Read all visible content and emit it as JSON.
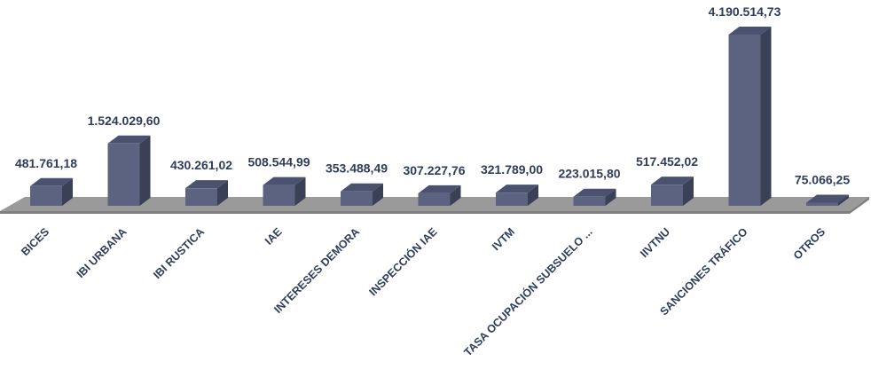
{
  "chart_data": {
    "type": "bar",
    "style": "3d-column",
    "title": "",
    "xlabel": "",
    "ylabel": "",
    "grid": false,
    "legend": "none",
    "colors": {
      "bar_front": "#5b6380",
      "bar_side": "#3a4157",
      "bar_top": "#4a5270",
      "floor": "#9a9a9a",
      "floor_edge": "#7f7f7f",
      "label": "#2f3c5a"
    },
    "categories": [
      "BICES",
      "IBI URBANA",
      "IBI RUSTICA",
      "IAE",
      "INTERESES DEMORA",
      "INSPECCIÓN IAE",
      "IVTM",
      "TASA OCUPACIÓN SUBSUELO ...",
      "IIVTNU",
      "SANCIONES TRÁFICO",
      "OTROS"
    ],
    "values": [
      481761.18,
      1524029.6,
      430261.02,
      508544.99,
      353488.49,
      307227.76,
      321789.0,
      223015.8,
      517452.02,
      4190514.73,
      75066.25
    ],
    "data_labels": [
      "481.761,18",
      "1.524.029,60",
      "430.261,02",
      "508.544,99",
      "353.488,49",
      "307.227,76",
      "321.789,00",
      "223.015,80",
      "517.452,02",
      "4.190.514,73",
      "75.066,25"
    ],
    "ylim": [
      0,
      4190514.73
    ]
  }
}
